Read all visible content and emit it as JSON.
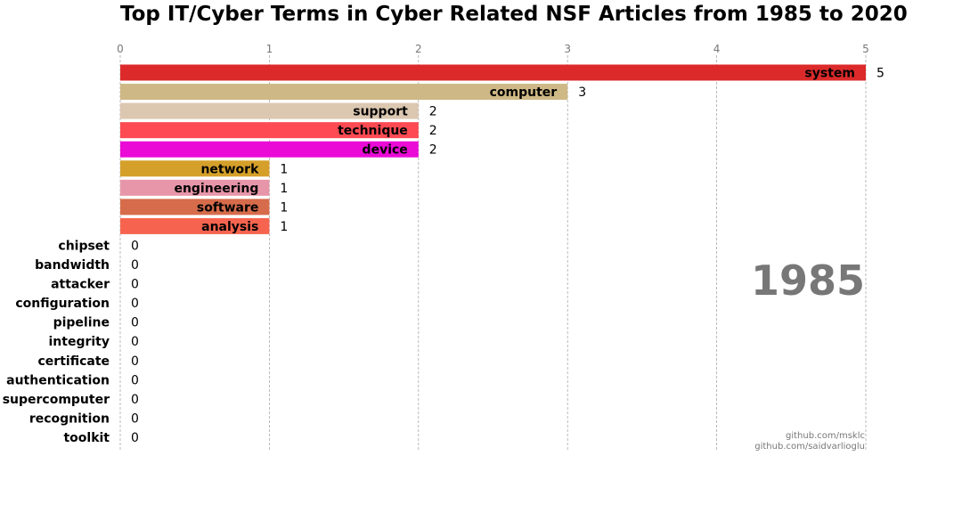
{
  "chart_data": {
    "type": "bar",
    "orientation": "horizontal",
    "title": "Top IT/Cyber Terms in Cyber Related NSF Articles from 1985 to 2020",
    "xlabel": "",
    "ylabel": "",
    "xlim": [
      0,
      5
    ],
    "x_ticks": [
      0,
      1,
      2,
      3,
      4,
      5
    ],
    "grid": "vertical dashed",
    "year": "1985",
    "credits": [
      "github.com/msklc",
      "github.com/saidvarlioglu"
    ],
    "categories": [
      "system",
      "computer",
      "support",
      "technique",
      "device",
      "network",
      "engineering",
      "software",
      "analysis",
      "chipset",
      "bandwidth",
      "attacker",
      "configuration",
      "pipeline",
      "integrity",
      "certificate",
      "authentication",
      "supercomputer",
      "recognition",
      "toolkit"
    ],
    "values": [
      5,
      3,
      2,
      2,
      2,
      1,
      1,
      1,
      1,
      0,
      0,
      0,
      0,
      0,
      0,
      0,
      0,
      0,
      0,
      0
    ],
    "colors": [
      "#dc2a2a",
      "#ceb885",
      "#dcc7b1",
      "#fd4a53",
      "#ea0bd7",
      "#d5a02a",
      "#e796a9",
      "#d66c4b",
      "#f6644f",
      "#888888",
      "#888888",
      "#888888",
      "#888888",
      "#888888",
      "#888888",
      "#888888",
      "#888888",
      "#888888",
      "#888888",
      "#888888"
    ]
  }
}
